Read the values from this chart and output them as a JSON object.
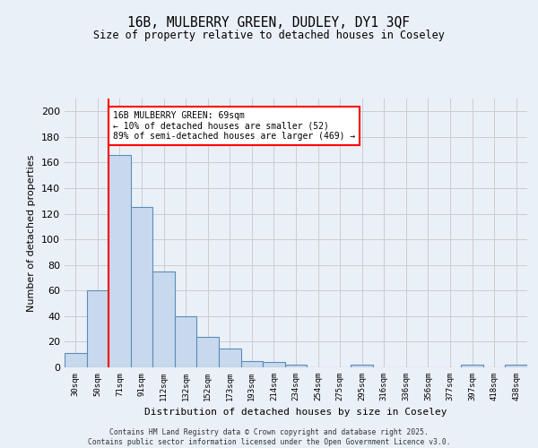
{
  "title_line1": "16B, MULBERRY GREEN, DUDLEY, DY1 3QF",
  "title_line2": "Size of property relative to detached houses in Coseley",
  "xlabel": "Distribution of detached houses by size in Coseley",
  "ylabel": "Number of detached properties",
  "categories": [
    "30sqm",
    "50sqm",
    "71sqm",
    "91sqm",
    "112sqm",
    "132sqm",
    "152sqm",
    "173sqm",
    "193sqm",
    "214sqm",
    "234sqm",
    "254sqm",
    "275sqm",
    "295sqm",
    "316sqm",
    "336sqm",
    "356sqm",
    "377sqm",
    "397sqm",
    "418sqm",
    "438sqm"
  ],
  "values": [
    11,
    60,
    166,
    125,
    75,
    40,
    24,
    15,
    5,
    4,
    2,
    0,
    0,
    2,
    0,
    0,
    0,
    0,
    2,
    0,
    2
  ],
  "bar_color": "#c8d9ee",
  "bar_edge_color": "#5b8db8",
  "red_line_index": 1.5,
  "annotation_text": "16B MULBERRY GREEN: 69sqm\n← 10% of detached houses are smaller (52)\n89% of semi-detached houses are larger (469) →",
  "annotation_box_color": "white",
  "annotation_box_edge_color": "red",
  "ylim": [
    0,
    210
  ],
  "yticks": [
    0,
    20,
    40,
    60,
    80,
    100,
    120,
    140,
    160,
    180,
    200
  ],
  "grid_color": "#cccccc",
  "bg_color": "#eaf0f8",
  "footer_line1": "Contains HM Land Registry data © Crown copyright and database right 2025.",
  "footer_line2": "Contains public sector information licensed under the Open Government Licence v3.0."
}
